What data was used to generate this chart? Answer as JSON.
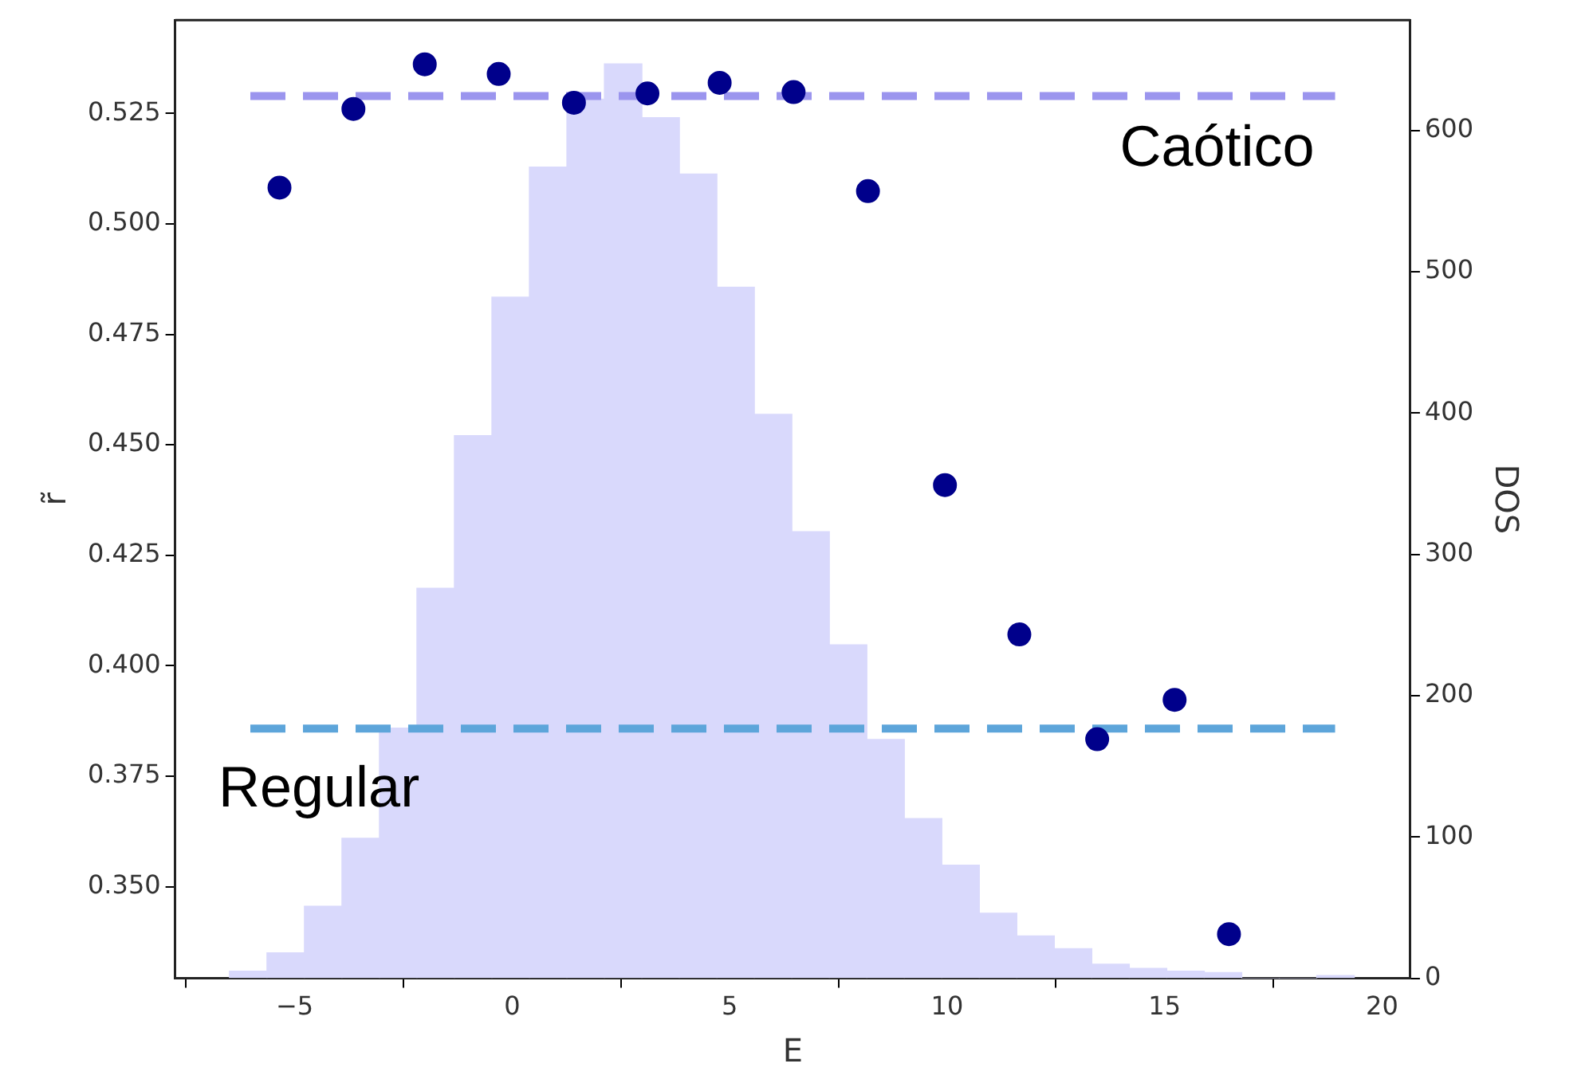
{
  "chart_data": {
    "type": "scatter",
    "xlabel": "E",
    "ylabel": "r̃",
    "y2label": "DOS",
    "xlim": [
      -7.75,
      20.65
    ],
    "xticks": [
      {
        "value": -5,
        "label": "−5"
      },
      0,
      5,
      10,
      15,
      20
    ],
    "ylim": [
      0.3293,
      0.5461
    ],
    "yticks": [
      {
        "value": 0.35,
        "label": "0.350"
      },
      0.375,
      {
        "value": 0.4,
        "label": "0.400"
      },
      0.425,
      {
        "value": 0.45,
        "label": "0.450"
      },
      0.475,
      {
        "value": 0.5,
        "label": "0.500"
      },
      0.525
    ],
    "y2lim": [
      0,
      678
    ],
    "y2ticks": [
      0,
      100,
      200,
      300,
      400,
      500,
      600
    ],
    "grid": false,
    "legend": false,
    "series": [
      {
        "type": "histogram",
        "axis": "y2",
        "color": "#d9d9fc",
        "bins": [
          -6.5,
          -5.638,
          -4.776,
          -3.914,
          -3.052,
          -2.19,
          -1.328,
          -0.466,
          0.396,
          1.258,
          2.12,
          2.982,
          3.844,
          4.706,
          5.568,
          6.43,
          7.292,
          8.154,
          9.016,
          9.878,
          10.74,
          11.602,
          12.464,
          13.326,
          14.188,
          15.05,
          15.912,
          16.774,
          17.636,
          18.498,
          19.36
        ],
        "values": [
          5,
          18,
          51,
          99,
          177,
          276,
          384,
          482,
          574,
          622,
          647,
          609,
          569,
          489,
          399,
          316,
          236,
          169,
          113,
          80,
          46,
          30,
          21,
          10,
          7,
          5,
          4,
          0,
          0,
          2
        ]
      },
      {
        "type": "line",
        "name": "Caótico",
        "color": "#9b95ee",
        "line_style": "dashed",
        "x": [
          -6.02,
          18.92
        ],
        "values": [
          0.5289,
          0.5289
        ]
      },
      {
        "type": "line",
        "name": "Regular",
        "color": "#5da5da",
        "line_style": "dashed",
        "x": [
          -6.02,
          18.92
        ],
        "values": [
          0.3858,
          0.3858
        ]
      },
      {
        "marker": "circle",
        "color": "#00008b",
        "x": [
          -5.35,
          -3.65,
          -2.01,
          -0.31,
          1.42,
          3.11,
          4.77,
          6.47,
          8.18,
          9.95,
          11.66,
          13.45,
          15.23,
          16.48
        ],
        "values": [
          0.5082,
          0.526,
          0.5361,
          0.5339,
          0.5274,
          0.5295,
          0.5319,
          0.5298,
          0.5074,
          0.4409,
          0.4071,
          0.3834,
          0.3923,
          0.3393
        ]
      }
    ],
    "tick_labels": true
  }
}
